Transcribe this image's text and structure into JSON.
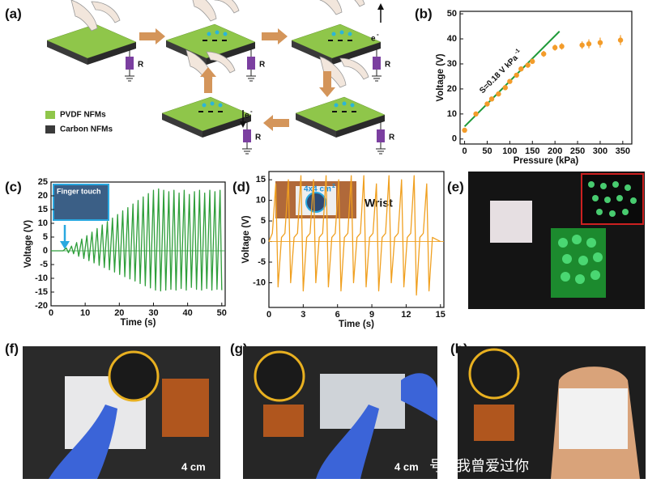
{
  "panel_labels": [
    "(a)",
    "(b)",
    "(c)",
    "(d)",
    "(e)",
    "(f)",
    "(g)",
    "(h)"
  ],
  "diagram": {
    "legend": [
      "PVDF NFMs",
      "Carbon NFMs"
    ],
    "resistor": "R",
    "electron": "e",
    "electron_sup": "-"
  },
  "insets": {
    "finger_touch": "Finger touch",
    "wrist": "Wrist",
    "area": "4x4 cm",
    "area_sup": "2"
  },
  "scale_bars": [
    "4 cm",
    "4 cm"
  ],
  "watermark": "号 / 我曾爱过你",
  "chart_data": [
    {
      "type": "scatter",
      "xlabel": "Pressure (kPa)",
      "ylabel": "Voltage (V)",
      "annotation": "S=0.18 V kPa",
      "annotation_sup": "-1",
      "x": [
        0,
        25,
        50,
        60,
        75,
        90,
        100,
        115,
        125,
        140,
        150,
        175,
        200,
        215,
        260,
        275,
        300,
        345
      ],
      "values": [
        3.5,
        10,
        14,
        16,
        18,
        20.5,
        23,
        25.5,
        28,
        29.5,
        31,
        34,
        36.5,
        37,
        37.5,
        38,
        38.5,
        39.5
      ],
      "errors": [
        0.6,
        0.6,
        0.7,
        0.7,
        0.8,
        0.8,
        0.9,
        0.9,
        1,
        1,
        1,
        1.2,
        1.2,
        1.3,
        1.5,
        1.8,
        2,
        2
      ],
      "color": "#f39c2a",
      "fit_line": {
        "x": [
          0,
          210
        ],
        "values": [
          5,
          43
        ],
        "color": "#1f9a3a"
      },
      "xlim": [
        -10,
        370
      ],
      "ylim": [
        -2,
        51
      ],
      "xticks": [
        0,
        50,
        100,
        150,
        200,
        250,
        300,
        350
      ],
      "yticks": [
        0,
        10,
        20,
        30,
        40,
        50
      ]
    },
    {
      "type": "line",
      "xlabel": "Time (s)",
      "ylabel": "Voltage (V)",
      "color": "#2e9e3a",
      "x": [
        0,
        3.5,
        4.5,
        5.1,
        6,
        6.6,
        7.5,
        8.1,
        9,
        9.6,
        10.5,
        11.1,
        12,
        12.6,
        13.5,
        14.1,
        15,
        15.6,
        16.5,
        17.1,
        18,
        18.6,
        19.5,
        20.1,
        21,
        21.6,
        22.5,
        23.1,
        24,
        24.6,
        25.5,
        26.1,
        27,
        27.6,
        28.5,
        29.1,
        30,
        30.6,
        31.5,
        32.1,
        33,
        33.6,
        34.5,
        35.1,
        36,
        36.6,
        37.5,
        38.1,
        39,
        39.6,
        40.5,
        41.1,
        42,
        42.6,
        43.5,
        44.1,
        45,
        45.6,
        46.5,
        47.1,
        48,
        48.6,
        49.5,
        50
      ],
      "values": [
        0,
        0,
        1,
        -0.7,
        1.7,
        -1.1,
        3,
        -2,
        4.3,
        -2.8,
        5.5,
        -3.6,
        6.8,
        -4.4,
        8.1,
        -5.3,
        9.4,
        -6.1,
        10.6,
        -6.9,
        11.9,
        -7.7,
        13.2,
        -8.6,
        14.5,
        -9.4,
        15.7,
        -10.2,
        17,
        -11,
        18.3,
        -11.9,
        19.6,
        -12.7,
        20.8,
        -13.5,
        22,
        -14.3,
        22.5,
        -14.6,
        22,
        -14.3,
        21.5,
        -14,
        22,
        -14.3,
        21,
        -13.7,
        22,
        -14.3,
        20.5,
        -13.3,
        21.5,
        -14,
        22,
        -14.3,
        21,
        -13.7,
        22,
        -14.3,
        21.5,
        -14,
        22,
        -14.3
      ],
      "xlim": [
        0,
        51
      ],
      "ylim": [
        -20,
        25
      ],
      "xticks": [
        0,
        10,
        20,
        30,
        40,
        50
      ],
      "yticks": [
        -20,
        -15,
        -10,
        -5,
        0,
        5,
        10,
        15,
        20,
        25
      ]
    },
    {
      "type": "line",
      "xlabel": "Time (s)",
      "ylabel": "Voltage (V)",
      "color": "#f0a020",
      "x": [
        0,
        0.3,
        0.6,
        0.8,
        1.1,
        1.4,
        1.7,
        1.9,
        2.2,
        2.5,
        2.8,
        3.0,
        3.3,
        3.6,
        3.9,
        4.1,
        4.4,
        4.7,
        5.0,
        5.2,
        5.5,
        5.8,
        6.1,
        6.3,
        6.6,
        6.9,
        7.2,
        7.4,
        7.7,
        8.0,
        8.3,
        8.5,
        8.8,
        9.1,
        9.4,
        9.6,
        9.9,
        10.2,
        10.5,
        10.7,
        11.0,
        11.3,
        11.6,
        11.8,
        12.1,
        12.4,
        12.7,
        12.9,
        13.2,
        13.5,
        13.8,
        14.0,
        14.3,
        15
      ],
      "values": [
        0,
        2,
        14,
        -11,
        1,
        2,
        15,
        -10,
        1,
        2,
        16,
        -12,
        1,
        2,
        15,
        -10,
        1,
        2,
        16,
        -11,
        1,
        2,
        15,
        -12,
        1,
        2,
        16,
        -10,
        1,
        2,
        16,
        -11,
        1,
        2,
        14,
        -12,
        1,
        2,
        16,
        -10,
        1,
        2,
        15,
        -11,
        1,
        2,
        16,
        -13,
        1,
        2,
        14,
        -12,
        1,
        0
      ],
      "xlim": [
        0,
        15.3
      ],
      "ylim": [
        -16,
        17
      ],
      "xticks": [
        0,
        3,
        6,
        9,
        12,
        15
      ],
      "yticks": [
        -10,
        -5,
        0,
        5,
        10,
        15
      ]
    }
  ]
}
